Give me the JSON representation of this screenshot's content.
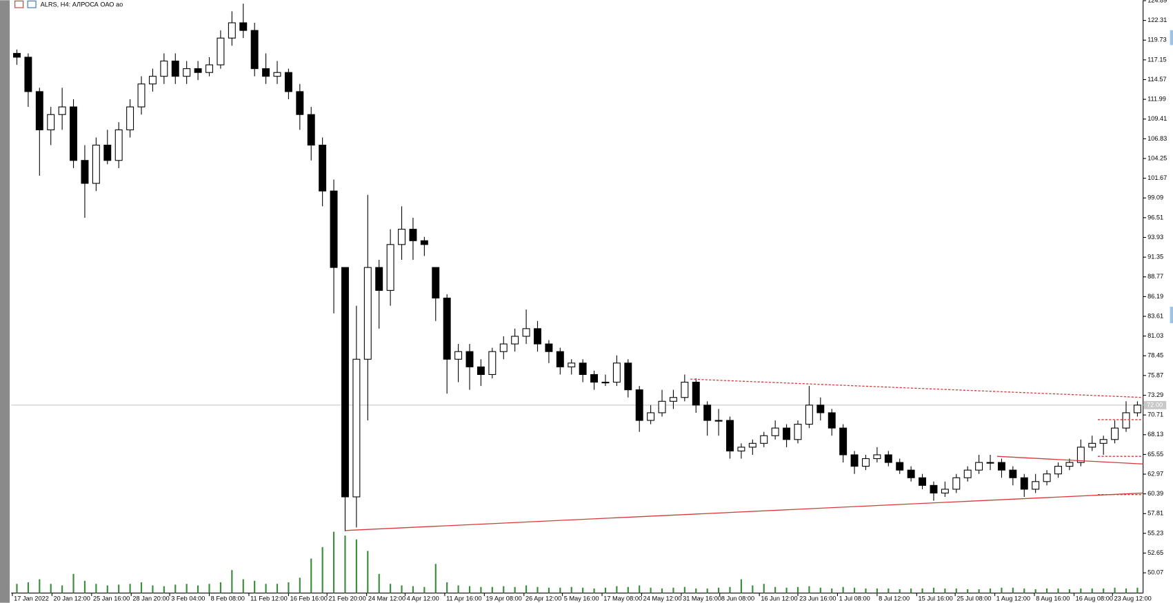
{
  "chart_data": {
    "type": "candlestick",
    "title": "ALRS, H4:  АЛРОСА ОАО ао",
    "ohlc": [
      [
        118,
        118.5,
        116.5,
        117.5
      ],
      [
        117.5,
        118,
        111,
        113
      ],
      [
        113,
        113.5,
        102,
        108
      ],
      [
        108,
        111,
        106,
        110
      ],
      [
        110,
        113.5,
        108,
        111
      ],
      [
        111,
        112,
        103,
        104
      ],
      [
        104,
        106,
        96.5,
        101
      ],
      [
        101,
        107,
        100,
        106
      ],
      [
        106,
        108,
        103.5,
        104
      ],
      [
        104,
        109,
        103,
        108
      ],
      [
        108,
        112,
        107,
        111
      ],
      [
        111,
        115,
        110,
        114
      ],
      [
        114,
        116,
        113,
        115
      ],
      [
        115,
        118,
        114,
        117
      ],
      [
        117,
        118,
        114,
        115
      ],
      [
        115,
        117,
        114,
        116
      ],
      [
        116,
        117,
        114.5,
        115.5
      ],
      [
        115.5,
        117.5,
        115,
        116.5
      ],
      [
        116.5,
        121,
        116,
        120
      ],
      [
        120,
        123.5,
        119,
        122
      ],
      [
        122,
        124.5,
        120,
        121
      ],
      [
        121,
        122,
        115,
        116
      ],
      [
        116,
        118,
        114,
        115
      ],
      [
        115,
        117,
        114,
        115.5
      ],
      [
        115.5,
        116,
        112,
        113
      ],
      [
        113,
        114,
        108,
        110
      ],
      [
        110,
        111,
        104,
        106
      ],
      [
        106,
        107,
        98,
        100
      ],
      [
        100,
        101.5,
        84,
        90
      ],
      [
        90,
        90,
        55.5,
        60
      ],
      [
        60,
        85,
        56,
        78
      ],
      [
        78,
        99.5,
        70,
        90
      ],
      [
        90,
        91,
        82,
        87
      ],
      [
        87,
        95,
        85,
        93
      ],
      [
        93,
        98,
        91,
        95
      ],
      [
        95,
        96.5,
        91,
        93.5
      ],
      [
        93.5,
        94,
        91.5,
        93
      ],
      [
        90,
        90,
        83,
        86
      ],
      [
        86,
        86.5,
        73.5,
        78
      ],
      [
        78,
        80,
        75,
        79
      ],
      [
        79,
        80,
        74,
        77
      ],
      [
        77,
        78,
        74.5,
        76
      ],
      [
        76,
        79.5,
        75.5,
        79
      ],
      [
        79,
        81,
        78,
        80
      ],
      [
        80,
        82,
        79,
        81
      ],
      [
        81,
        84.5,
        80,
        82
      ],
      [
        82,
        83,
        79,
        80
      ],
      [
        80,
        80.5,
        77.5,
        79
      ],
      [
        79,
        79.5,
        76,
        77
      ],
      [
        77,
        78,
        76,
        77.5
      ],
      [
        77.5,
        78,
        75,
        76
      ],
      [
        76,
        76.5,
        74,
        75
      ],
      [
        75,
        76,
        74.5,
        75
      ],
      [
        75,
        78.5,
        74.5,
        77.5
      ],
      [
        77.5,
        78,
        73,
        74
      ],
      [
        74,
        74.5,
        68.5,
        70
      ],
      [
        70,
        72,
        69.5,
        71
      ],
      [
        71,
        74,
        70.5,
        72.5
      ],
      [
        72.5,
        74,
        71.5,
        73
      ],
      [
        73,
        76,
        72.5,
        75
      ],
      [
        75,
        75.5,
        71,
        72
      ],
      [
        72,
        72.5,
        68,
        70
      ],
      [
        70,
        71.5,
        68,
        70
      ],
      [
        70,
        70.5,
        65,
        66
      ],
      [
        66,
        67,
        65,
        66.5
      ],
      [
        66.5,
        67.5,
        65.5,
        67
      ],
      [
        67,
        68.5,
        66.5,
        68
      ],
      [
        68,
        70,
        67.5,
        69
      ],
      [
        69,
        69.5,
        66.5,
        67.5
      ],
      [
        67.5,
        70,
        67,
        69.5
      ],
      [
        69.5,
        74.5,
        69,
        72
      ],
      [
        72,
        73,
        70,
        71
      ],
      [
        71,
        71.5,
        68,
        69
      ],
      [
        69,
        69.5,
        64.5,
        65.5
      ],
      [
        65.5,
        66,
        63,
        64
      ],
      [
        64,
        65.5,
        63.5,
        65
      ],
      [
        65,
        66.5,
        64.5,
        65.5
      ],
      [
        65.5,
        66,
        64,
        64.5
      ],
      [
        64.5,
        65,
        63,
        63.5
      ],
      [
        63.5,
        64,
        62,
        62.5
      ],
      [
        62.5,
        63,
        61,
        61.5
      ],
      [
        61.5,
        62,
        59.5,
        60.5
      ],
      [
        60.5,
        62,
        60,
        61
      ],
      [
        61,
        63,
        60.5,
        62.5
      ],
      [
        62.5,
        64,
        62,
        63.5
      ],
      [
        63.5,
        65.5,
        63,
        64.5
      ],
      [
        64.5,
        65.5,
        63.5,
        64.5
      ],
      [
        64.5,
        65,
        62.5,
        63.5
      ],
      [
        63.5,
        64,
        61.5,
        62.5
      ],
      [
        62.5,
        63,
        60,
        61
      ],
      [
        61,
        63,
        60.5,
        62
      ],
      [
        62,
        63.5,
        61.5,
        63
      ],
      [
        63,
        64.5,
        62.5,
        64
      ],
      [
        64,
        65,
        63.5,
        64.5
      ],
      [
        64.5,
        67.5,
        64,
        66.5
      ],
      [
        66.5,
        68,
        66,
        67
      ],
      [
        67,
        68,
        65.5,
        67.5
      ],
      [
        67.5,
        70,
        67,
        69
      ],
      [
        69,
        72.5,
        68.5,
        71
      ],
      [
        71,
        72.5,
        70.5,
        72
      ]
    ],
    "volume": [
      12,
      14,
      18,
      12,
      10,
      25,
      16,
      12,
      10,
      11,
      12,
      14,
      10,
      9,
      11,
      12,
      10,
      12,
      14,
      30,
      18,
      16,
      12,
      12,
      14,
      20,
      45,
      60,
      80,
      75,
      70,
      55,
      25,
      12,
      10,
      9,
      8,
      38,
      14,
      10,
      9,
      8,
      8,
      9,
      8,
      10,
      8,
      7,
      7,
      8,
      7,
      6,
      7,
      9,
      8,
      10,
      7,
      6,
      7,
      8,
      6,
      6,
      7,
      8,
      18,
      10,
      12,
      8,
      7,
      8,
      9,
      7,
      6,
      8,
      7,
      6,
      6,
      6,
      5,
      6,
      6,
      7,
      6,
      6,
      5,
      5,
      6,
      7,
      7,
      6,
      5,
      6,
      6,
      5,
      6,
      6,
      6,
      7,
      6,
      7
    ],
    "up_color": "#ffffff",
    "down_color": "#000000",
    "wick_color": "#000000",
    "volume_color": "#3c8c3c",
    "xlim": [
      -0.5,
      99.5
    ],
    "xticks": [
      {
        "value": -0.4,
        "label": "17 Jan 2022"
      },
      {
        "value": 3.1,
        "label": "20 Jan 12:00"
      },
      {
        "value": 6.6,
        "label": "25 Jan 16:00"
      },
      {
        "value": 10.1,
        "label": "28 Jan 20:00"
      },
      {
        "value": 13.5,
        "label": "3 Feb 04:00"
      },
      {
        "value": 17,
        "label": "8 Feb 08:00"
      },
      {
        "value": 20.5,
        "label": "11 Feb 12:00"
      },
      {
        "value": 24,
        "label": "16 Feb 16:00"
      },
      {
        "value": 27.4,
        "label": "21 Feb 20:00"
      },
      {
        "value": 30.9,
        "label": "24 Mar 12:00"
      },
      {
        "value": 34.3,
        "label": "4 Apr 12:00"
      },
      {
        "value": 37.8,
        "label": "11 Apr 16:00"
      },
      {
        "value": 41.3,
        "label": "19 Apr 08:00"
      },
      {
        "value": 44.8,
        "label": "26 Apr 12:00"
      },
      {
        "value": 48.2,
        "label": "5 May 16:00"
      },
      {
        "value": 51.7,
        "label": "17 May 08:00"
      },
      {
        "value": 55.2,
        "label": "24 May 12:00"
      },
      {
        "value": 58.7,
        "label": "31 May 16:00"
      },
      {
        "value": 62.1,
        "label": "8 Jun 08:00"
      },
      {
        "value": 65.6,
        "label": "16 Jun 12:00"
      },
      {
        "value": 69,
        "label": "23 Jun 16:00"
      },
      {
        "value": 72.5,
        "label": "1 Jul 08:00"
      },
      {
        "value": 76,
        "label": "8 Jul 12:00"
      },
      {
        "value": 79.5,
        "label": "15 Jul 16:00"
      },
      {
        "value": 82.9,
        "label": "25 Jul 08:00"
      },
      {
        "value": 86.4,
        "label": "1 Aug 12:00"
      },
      {
        "value": 89.9,
        "label": "8 Aug 16:00"
      },
      {
        "value": 93.4,
        "label": "16 Aug 08:00"
      },
      {
        "value": 96.8,
        "label": "23 Aug 12:00"
      }
    ],
    "ylim": [
      47.42,
      124.95
    ],
    "yticks": [
      124.89,
      122.31,
      119.73,
      117.15,
      114.57,
      111.99,
      109.41,
      106.83,
      104.25,
      101.67,
      99.09,
      96.51,
      93.93,
      91.35,
      88.77,
      86.19,
      83.61,
      81.03,
      78.45,
      75.87,
      73.29,
      70.71,
      68.13,
      65.55,
      62.97,
      60.39,
      57.81,
      55.23,
      52.65,
      50.07
    ],
    "last_price": {
      "value": 72,
      "label": "72.00"
    },
    "trendline_color": "#d43a3a",
    "trendlines": [
      {
        "x": [
          29,
          99.5
        ],
        "y": [
          55.6,
          60.5
        ],
        "style": "solid"
      },
      {
        "x": [
          59.5,
          99.5
        ],
        "y": [
          75.4,
          73.0
        ],
        "style": "dotted"
      },
      {
        "x": [
          86.6,
          99.5
        ],
        "y": [
          65.3,
          64.3
        ],
        "style": "solid"
      },
      {
        "x": [
          95.5,
          99.5
        ],
        "y": [
          70.1,
          70.1
        ],
        "style": "dotted"
      },
      {
        "x": [
          95.5,
          99.5
        ],
        "y": [
          65.3,
          65.3
        ],
        "style": "dotted"
      },
      {
        "x": [
          95.5,
          99.5
        ],
        "y": [
          60.3,
          60.3
        ],
        "style": "dotted"
      }
    ]
  }
}
